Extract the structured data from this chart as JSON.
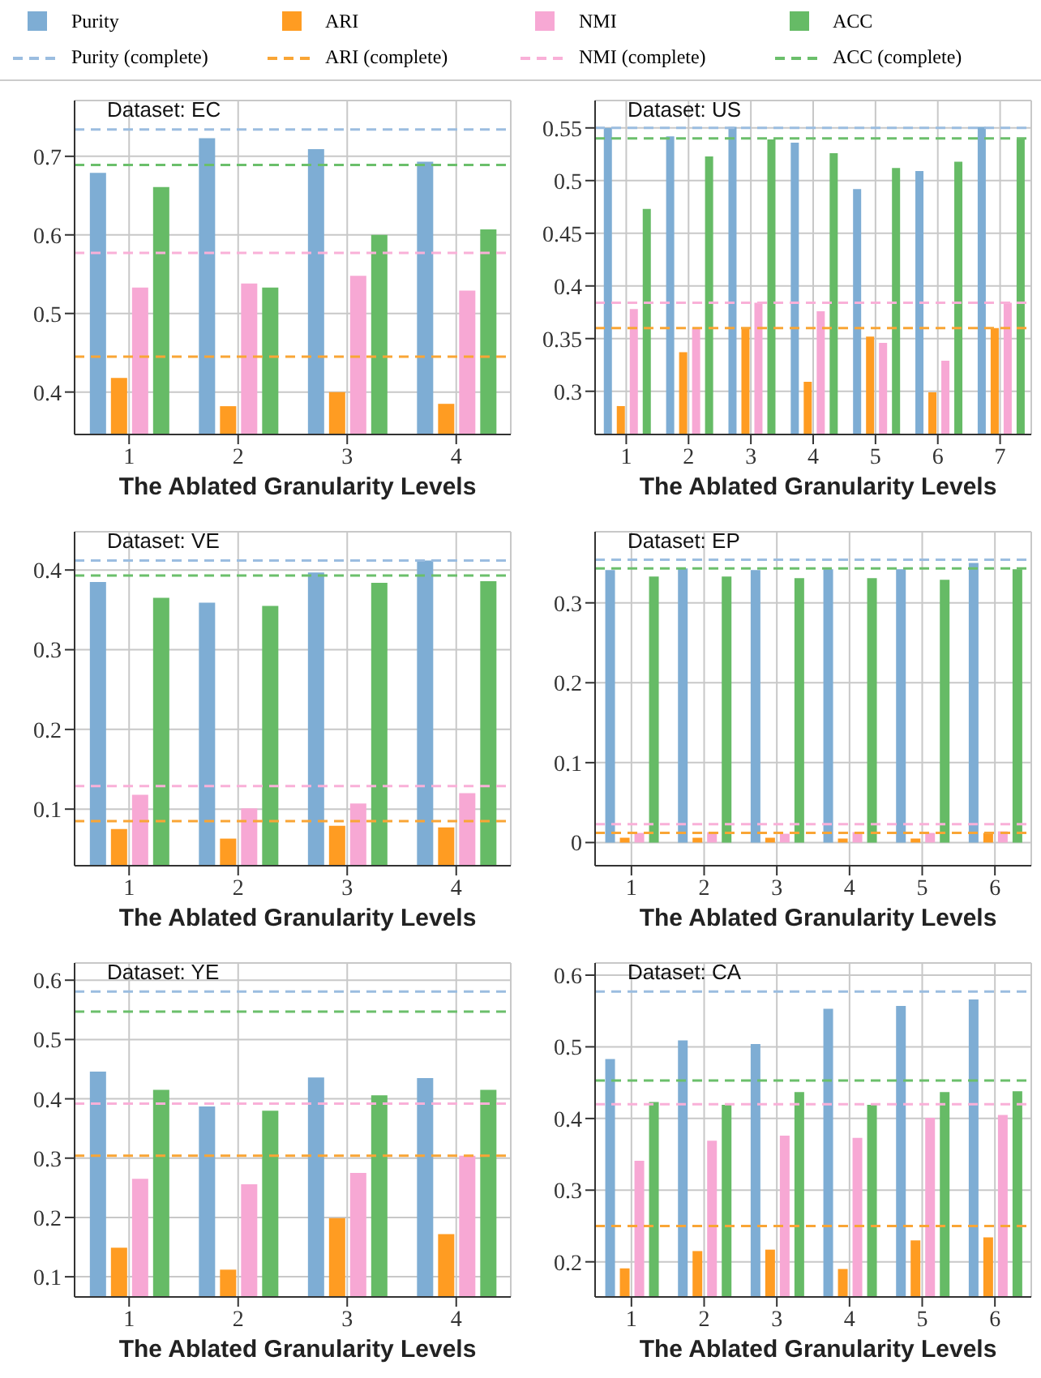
{
  "chart_data": [
    {
      "type": "bar",
      "categories": [
        "1",
        "2",
        "3",
        "4"
      ],
      "xlabel": "The Ablated Granularity Levels",
      "annotations": [
        "Dataset: EC"
      ],
      "ylim": [
        0.346,
        0.771
      ],
      "yticks": [
        0.4,
        0.5,
        0.6,
        0.7
      ],
      "grid": true,
      "legend": "top",
      "series": [
        {
          "name": "Purity",
          "color": "#7eadd4",
          "values": [
            0.679,
            0.723,
            0.709,
            0.693
          ]
        },
        {
          "name": "ARI",
          "color": "#ff9c22",
          "values": [
            0.418,
            0.382,
            0.4,
            0.385
          ]
        },
        {
          "name": "NMI",
          "color": "#f7a8d4",
          "values": [
            0.533,
            0.538,
            0.548,
            0.529
          ]
        },
        {
          "name": "ACC",
          "color": "#66bb66",
          "values": [
            0.661,
            0.533,
            0.6,
            0.607
          ]
        }
      ],
      "ref_lines": [
        {
          "axis": "y",
          "value": 0.734,
          "label": "Purity (complete)",
          "color": "#9bbde0",
          "line_style": "dashed"
        },
        {
          "axis": "y",
          "value": 0.445,
          "label": "ARI (complete)",
          "color": "#f9a535",
          "line_style": "dashed"
        },
        {
          "axis": "y",
          "value": 0.577,
          "label": "NMI (complete)",
          "color": "#f9b0d8",
          "line_style": "dashed"
        },
        {
          "axis": "y",
          "value": 0.689,
          "label": "ACC (complete)",
          "color": "#6bbf6b",
          "line_style": "dashed"
        }
      ]
    },
    {
      "type": "bar",
      "categories": [
        "1",
        "2",
        "3",
        "4",
        "5",
        "6",
        "7"
      ],
      "xlabel": "The Ablated Granularity Levels",
      "annotations": [
        "Dataset: US"
      ],
      "ylim": [
        0.259,
        0.576
      ],
      "yticks": [
        0.3,
        0.35,
        0.4,
        0.45,
        0.5,
        0.55
      ],
      "grid": true,
      "series": [
        {
          "color": "#7eadd4",
          "values": [
            0.55,
            0.542,
            0.551,
            0.536,
            0.492,
            0.509,
            0.551
          ]
        },
        {
          "color": "#ff9c22",
          "values": [
            0.286,
            0.337,
            0.36,
            0.309,
            0.352,
            0.299,
            0.36
          ]
        },
        {
          "color": "#f7a8d4",
          "values": [
            0.378,
            0.36,
            0.384,
            0.376,
            0.346,
            0.329,
            0.384
          ]
        },
        {
          "color": "#66bb66",
          "values": [
            0.473,
            0.523,
            0.539,
            0.526,
            0.512,
            0.518,
            0.539
          ]
        }
      ],
      "ref_lines": [
        {
          "axis": "y",
          "value": 0.55,
          "color": "#9bbde0",
          "line_style": "dashed"
        },
        {
          "axis": "y",
          "value": 0.36,
          "color": "#f9a535",
          "line_style": "dashed"
        },
        {
          "axis": "y",
          "value": 0.384,
          "color": "#f9b0d8",
          "line_style": "dashed"
        },
        {
          "axis": "y",
          "value": 0.54,
          "color": "#6bbf6b",
          "line_style": "dashed"
        }
      ]
    },
    {
      "type": "bar",
      "categories": [
        "1",
        "2",
        "3",
        "4"
      ],
      "xlabel": "The Ablated Granularity Levels",
      "annotations": [
        "Dataset: VE"
      ],
      "ylim": [
        0.029,
        0.448
      ],
      "yticks": [
        0.1,
        0.2,
        0.3,
        0.4
      ],
      "grid": true,
      "series": [
        {
          "color": "#7eadd4",
          "values": [
            0.385,
            0.359,
            0.397,
            0.412
          ]
        },
        {
          "color": "#ff9c22",
          "values": [
            0.075,
            0.063,
            0.079,
            0.077
          ]
        },
        {
          "color": "#f7a8d4",
          "values": [
            0.118,
            0.101,
            0.107,
            0.12
          ]
        },
        {
          "color": "#66bb66",
          "values": [
            0.365,
            0.355,
            0.384,
            0.386
          ]
        }
      ],
      "ref_lines": [
        {
          "axis": "y",
          "value": 0.412,
          "color": "#9bbde0",
          "line_style": "dashed"
        },
        {
          "axis": "y",
          "value": 0.085,
          "color": "#f9a535",
          "line_style": "dashed"
        },
        {
          "axis": "y",
          "value": 0.129,
          "color": "#f9b0d8",
          "line_style": "dashed"
        },
        {
          "axis": "y",
          "value": 0.393,
          "color": "#6bbf6b",
          "line_style": "dashed"
        }
      ]
    },
    {
      "type": "bar",
      "categories": [
        "1",
        "2",
        "3",
        "4",
        "5",
        "6"
      ],
      "xlabel": "The Ablated Granularity Levels",
      "annotations": [
        "Dataset: EP"
      ],
      "ylim": [
        -0.029,
        0.389
      ],
      "yticks": [
        0,
        0.1,
        0.2,
        0.3
      ],
      "grid": true,
      "series": [
        {
          "color": "#7eadd4",
          "values": [
            0.341,
            0.343,
            0.341,
            0.342,
            0.342,
            0.35
          ]
        },
        {
          "color": "#ff9c22",
          "values": [
            0.006,
            0.006,
            0.006,
            0.005,
            0.005,
            0.012
          ]
        },
        {
          "color": "#f7a8d4",
          "values": [
            0.012,
            0.013,
            0.011,
            0.013,
            0.012,
            0.014
          ]
        },
        {
          "color": "#66bb66",
          "values": [
            0.333,
            0.333,
            0.331,
            0.331,
            0.329,
            0.342
          ]
        }
      ],
      "ref_lines": [
        {
          "axis": "y",
          "value": 0.354,
          "color": "#9bbde0",
          "line_style": "dashed"
        },
        {
          "axis": "y",
          "value": 0.012,
          "color": "#f9a535",
          "line_style": "dashed"
        },
        {
          "axis": "y",
          "value": 0.023,
          "color": "#f9b0d8",
          "line_style": "dashed"
        },
        {
          "axis": "y",
          "value": 0.343,
          "color": "#6bbf6b",
          "line_style": "dashed"
        }
      ]
    },
    {
      "type": "bar",
      "categories": [
        "1",
        "2",
        "3",
        "4"
      ],
      "xlabel": "The Ablated Granularity Levels",
      "annotations": [
        "Dataset: YE"
      ],
      "ylim": [
        0.066,
        0.629
      ],
      "yticks": [
        0.1,
        0.2,
        0.3,
        0.4,
        0.5,
        0.6
      ],
      "grid": true,
      "series": [
        {
          "color": "#7eadd4",
          "values": [
            0.446,
            0.387,
            0.436,
            0.435
          ]
        },
        {
          "color": "#ff9c22",
          "values": [
            0.149,
            0.112,
            0.199,
            0.172
          ]
        },
        {
          "color": "#f7a8d4",
          "values": [
            0.265,
            0.256,
            0.275,
            0.304
          ]
        },
        {
          "color": "#66bb66",
          "values": [
            0.415,
            0.38,
            0.406,
            0.415
          ]
        }
      ],
      "ref_lines": [
        {
          "axis": "y",
          "value": 0.581,
          "color": "#9bbde0",
          "line_style": "dashed"
        },
        {
          "axis": "y",
          "value": 0.304,
          "color": "#f9a535",
          "line_style": "dashed"
        },
        {
          "axis": "y",
          "value": 0.392,
          "color": "#f9b0d8",
          "line_style": "dashed"
        },
        {
          "axis": "y",
          "value": 0.547,
          "color": "#6bbf6b",
          "line_style": "dashed"
        }
      ]
    },
    {
      "type": "bar",
      "categories": [
        "1",
        "2",
        "3",
        "4",
        "5",
        "6"
      ],
      "xlabel": "The Ablated Granularity Levels",
      "annotations": [
        "Dataset: CA"
      ],
      "ylim": [
        0.151,
        0.617
      ],
      "yticks": [
        0.2,
        0.3,
        0.4,
        0.5,
        0.6
      ],
      "grid": true,
      "series": [
        {
          "color": "#7eadd4",
          "values": [
            0.483,
            0.509,
            0.504,
            0.553,
            0.557,
            0.566
          ]
        },
        {
          "color": "#ff9c22",
          "values": [
            0.191,
            0.215,
            0.217,
            0.19,
            0.23,
            0.234
          ]
        },
        {
          "color": "#f7a8d4",
          "values": [
            0.341,
            0.369,
            0.376,
            0.373,
            0.401,
            0.405
          ]
        },
        {
          "color": "#66bb66",
          "values": [
            0.423,
            0.419,
            0.437,
            0.419,
            0.437,
            0.438
          ]
        }
      ],
      "ref_lines": [
        {
          "axis": "y",
          "value": 0.577,
          "color": "#9bbde0",
          "line_style": "dashed"
        },
        {
          "axis": "y",
          "value": 0.25,
          "color": "#f9a535",
          "line_style": "dashed"
        },
        {
          "axis": "y",
          "value": 0.42,
          "color": "#f9b0d8",
          "line_style": "dashed"
        },
        {
          "axis": "y",
          "value": 0.453,
          "color": "#6bbf6b",
          "line_style": "dashed"
        }
      ]
    }
  ]
}
